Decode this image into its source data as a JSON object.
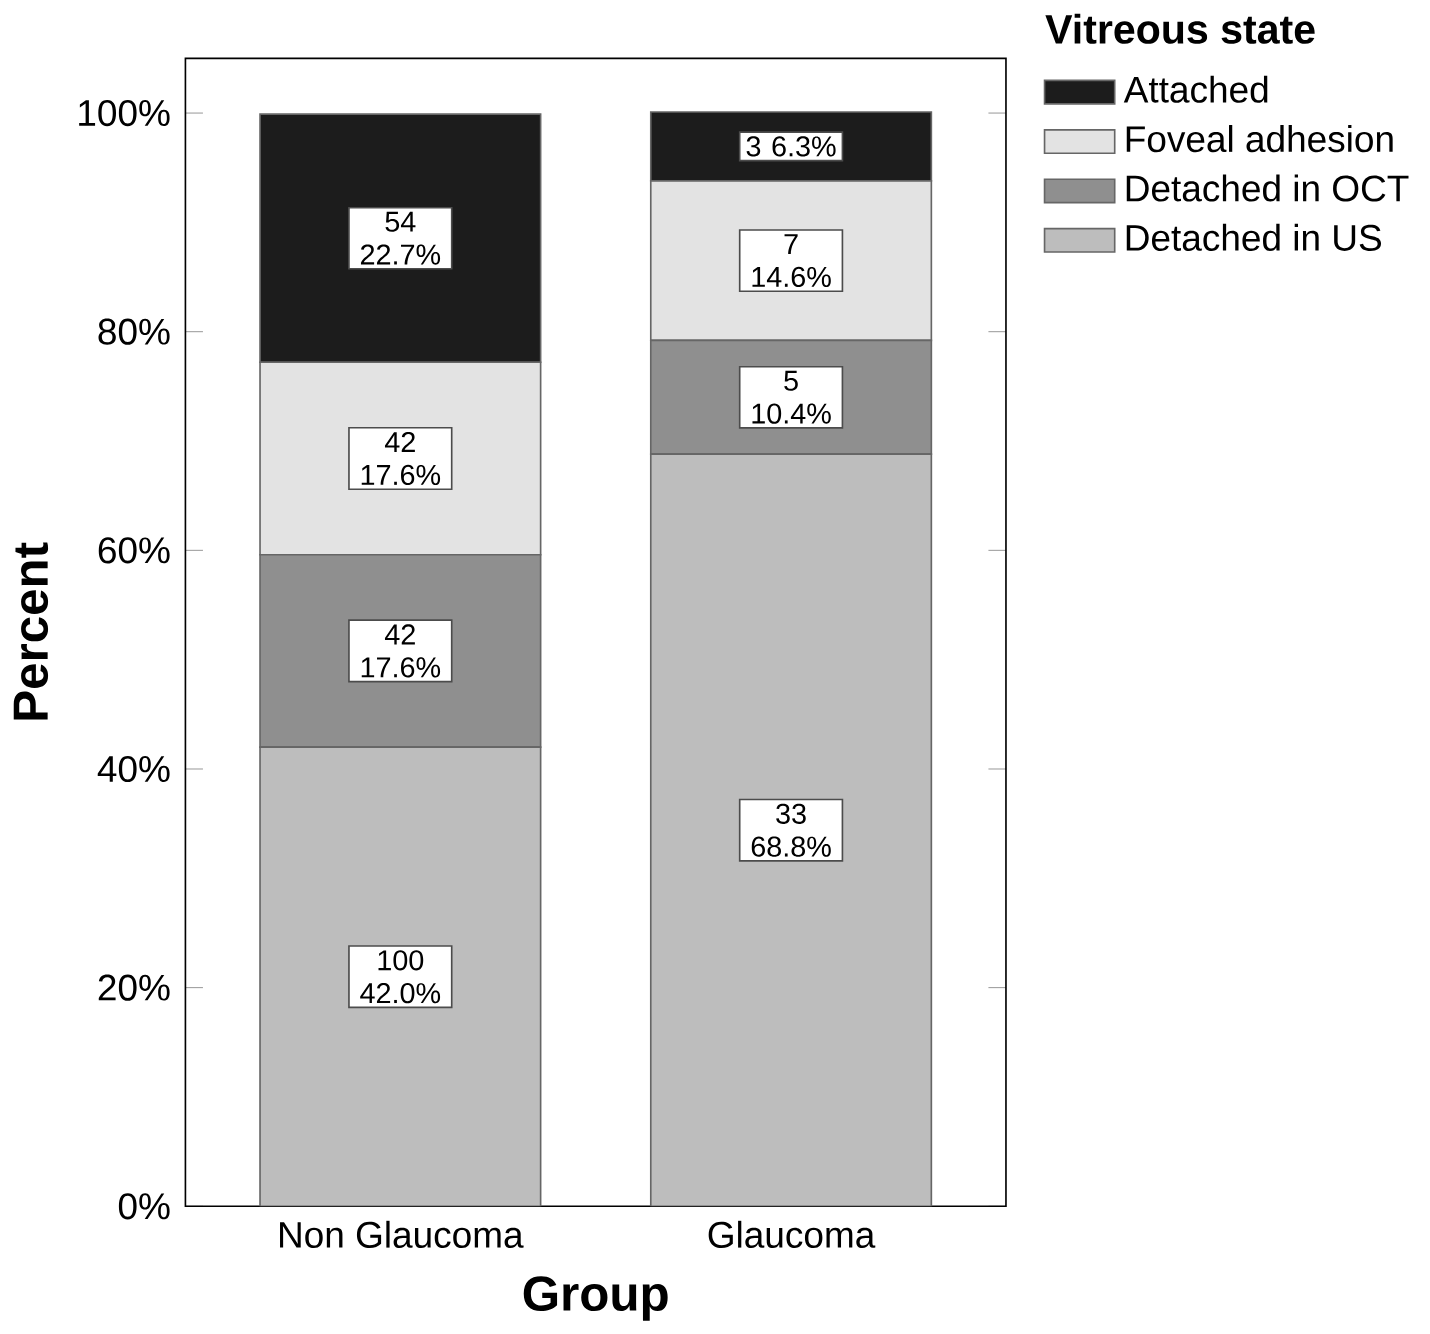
{
  "chart_data": {
    "type": "bar",
    "stacked": true,
    "xlabel": "Group",
    "ylabel": "Percent",
    "legend_title": "Vitreous state",
    "legend": "top right",
    "categories": [
      "Non Glaucoma",
      "Glaucoma"
    ],
    "series": [
      {
        "name": "Detached in US",
        "color": "#bdbdbd",
        "values": [
          42.0,
          68.8
        ],
        "value_labels": [
          "100 42.0%",
          "33 68.8%"
        ]
      },
      {
        "name": "Detached in OCT",
        "color": "#8f8f8f",
        "values": [
          17.6,
          10.4
        ],
        "value_labels": [
          "42 17.6%",
          "5 10.4%"
        ]
      },
      {
        "name": "Foveal adhesion",
        "color": "#e3e3e3",
        "values": [
          17.6,
          14.6
        ],
        "value_labels": [
          "42 17.6%",
          "7 14.6%"
        ]
      },
      {
        "name": "Attached",
        "color": "#1c1c1c",
        "values": [
          22.7,
          6.3
        ],
        "value_labels": [
          "54 22.7%",
          "3 6.3%"
        ]
      }
    ],
    "ylim": [
      0,
      105
    ],
    "yticks": [
      {
        "value": 0,
        "label": "0%"
      },
      {
        "value": 20,
        "label": "20%"
      },
      {
        "value": 40,
        "label": "40%"
      },
      {
        "value": 60,
        "label": "60%"
      },
      {
        "value": 80,
        "label": "80%"
      },
      {
        "value": 100,
        "label": "100%"
      }
    ],
    "grid": false
  }
}
